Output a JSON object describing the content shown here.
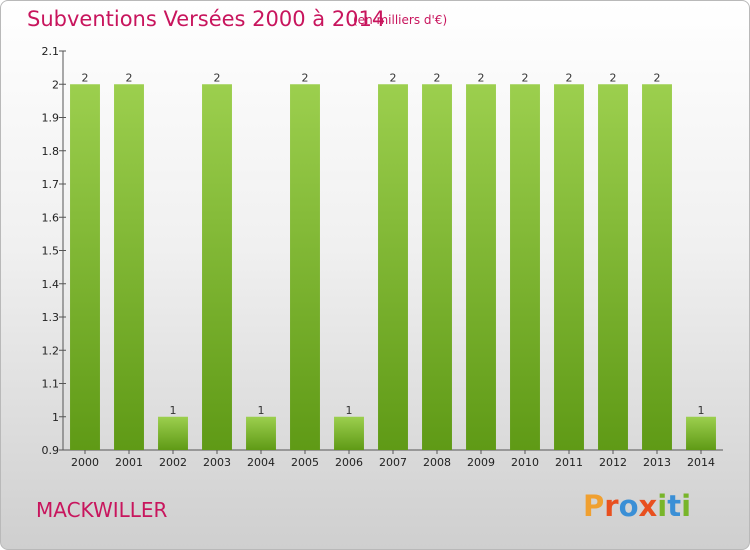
{
  "header": {
    "title": "Subventions Versées 2000 à 2014",
    "unit": "(en milliers d'€)"
  },
  "footer": {
    "commune": "MACKWILLER",
    "logo_text": "Proxiti"
  },
  "colors": {
    "title": "#c8155d",
    "bar_top": "#9ccf4e",
    "bar_bottom": "#5f9a16",
    "axis": "#555555",
    "logo": [
      "#f0a030",
      "#e8501f",
      "#3a8fd6",
      "#e8501f",
      "#78b52a",
      "#3a8fd6",
      "#78b52a"
    ]
  },
  "chart_data": {
    "type": "bar",
    "title": "Subventions Versées 2000 à 2014",
    "subtitle": "(en milliers d'€)",
    "xlabel": "",
    "ylabel": "",
    "categories": [
      "2000",
      "2001",
      "2002",
      "2003",
      "2004",
      "2005",
      "2006",
      "2007",
      "2008",
      "2009",
      "2010",
      "2011",
      "2012",
      "2013",
      "2014"
    ],
    "values": [
      2,
      2,
      1,
      2,
      1,
      2,
      1,
      2,
      2,
      2,
      2,
      2,
      2,
      2,
      1
    ],
    "value_labels": [
      "2",
      "2",
      "1",
      "2",
      "1",
      "2",
      "1",
      "2",
      "2",
      "2",
      "2",
      "2",
      "2",
      "2",
      "1"
    ],
    "ylim": [
      0.9,
      2.1
    ],
    "yticks": [
      "0.9",
      "1",
      "1.1",
      "1.2",
      "1.3",
      "1.4",
      "1.5",
      "1.6",
      "1.7",
      "1.8",
      "1.9",
      "2",
      "2.1"
    ],
    "grid": false,
    "legend": "none"
  }
}
